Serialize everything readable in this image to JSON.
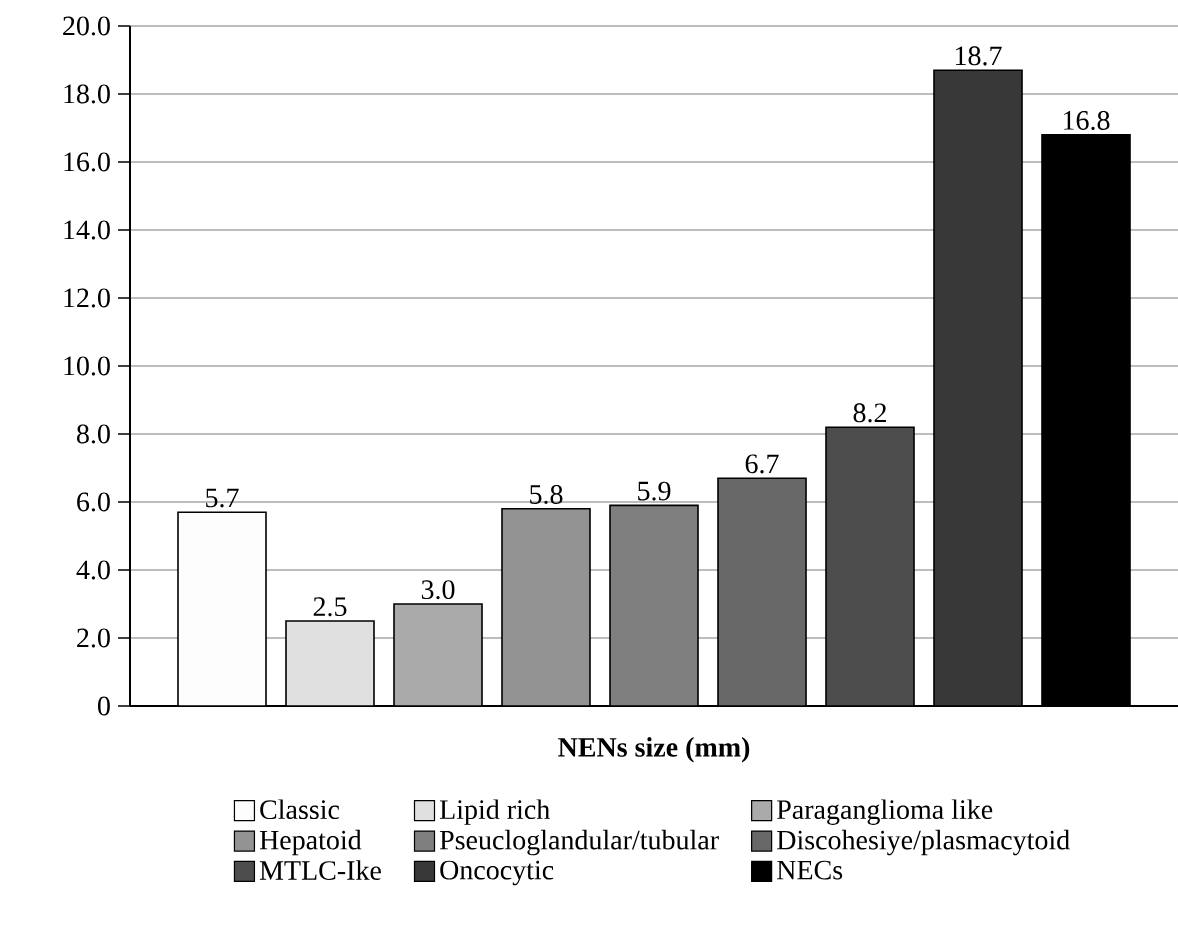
{
  "chart_data": {
    "type": "bar",
    "xlabel": "NENs size (mm)",
    "categories": [
      null
    ],
    "series": [
      {
        "name": "Classic",
        "color": "#fdfdfd",
        "values": [
          5.7
        ],
        "value_labels": [
          "5.7"
        ]
      },
      {
        "name": "Lipid rich",
        "color": "#e0e0e0",
        "values": [
          2.5
        ],
        "value_labels": [
          "2.5"
        ]
      },
      {
        "name": "Paraganglioma like",
        "color": "#aaaaaa",
        "values": [
          3.0
        ],
        "value_labels": [
          "3.0"
        ]
      },
      {
        "name": "Hepatoid",
        "color": "#939393",
        "values": [
          5.8
        ],
        "value_labels": [
          "5.8"
        ]
      },
      {
        "name": "Pseucloglandular/tubular",
        "color": "#7f7f7f",
        "values": [
          5.9
        ],
        "value_labels": [
          "5.9"
        ]
      },
      {
        "name": "Discohesiye/plasmacytoid",
        "color": "#686868",
        "values": [
          6.7
        ],
        "value_labels": [
          "6.7"
        ]
      },
      {
        "name": "MTLC-Ike",
        "color": "#4d4d4d",
        "values": [
          8.2
        ],
        "value_labels": [
          "8.2"
        ]
      },
      {
        "name": "Oncocytic",
        "color": "#383838",
        "values": [
          18.7
        ],
        "value_labels": [
          "18.7"
        ]
      },
      {
        "name": "NECs",
        "color": "#000000",
        "values": [
          16.8
        ],
        "value_labels": [
          "16.8"
        ]
      }
    ],
    "ylim": [
      0,
      20
    ],
    "yticks": [
      {
        "value": 0,
        "label": "0"
      },
      {
        "value": 2,
        "label": "2.0"
      },
      {
        "value": 4,
        "label": "4.0"
      },
      {
        "value": 6,
        "label": "6.0"
      },
      {
        "value": 8,
        "label": "8.0"
      },
      {
        "value": 10,
        "label": "10.0"
      },
      {
        "value": 12,
        "label": "12.0"
      },
      {
        "value": 14,
        "label": "14.0"
      },
      {
        "value": 16,
        "label": "16.0"
      },
      {
        "value": 18,
        "label": "18.0"
      },
      {
        "value": 20,
        "label": "20.0"
      }
    ],
    "grid": "y",
    "legend": "bottom",
    "tick_labels": "y"
  }
}
